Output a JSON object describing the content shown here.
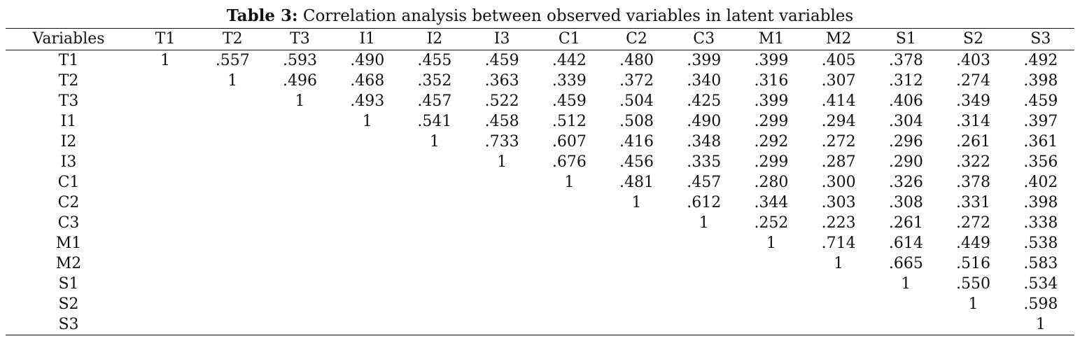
{
  "caption": {
    "label": "Table 3:",
    "text": "Correlation analysis between observed variables in latent variables"
  },
  "table": {
    "header": [
      "Variables",
      "T1",
      "T2",
      "T3",
      "I1",
      "I2",
      "I3",
      "C1",
      "C2",
      "C3",
      "M1",
      "M2",
      "S1",
      "S2",
      "S3"
    ],
    "rows": [
      [
        "T1",
        "1",
        ".557",
        ".593",
        ".490",
        ".455",
        ".459",
        ".442",
        ".480",
        ".399",
        ".399",
        ".405",
        ".378",
        ".403",
        ".492"
      ],
      [
        "T2",
        "",
        "1",
        ".496",
        ".468",
        ".352",
        ".363",
        ".339",
        ".372",
        ".340",
        ".316",
        ".307",
        ".312",
        ".274",
        ".398"
      ],
      [
        "T3",
        "",
        "",
        "1",
        ".493",
        ".457",
        ".522",
        ".459",
        ".504",
        ".425",
        ".399",
        ".414",
        ".406",
        ".349",
        ".459"
      ],
      [
        "I1",
        "",
        "",
        "",
        "1",
        ".541",
        ".458",
        ".512",
        ".508",
        ".490",
        ".299",
        ".294",
        ".304",
        ".314",
        ".397"
      ],
      [
        "I2",
        "",
        "",
        "",
        "",
        "1",
        ".733",
        ".607",
        ".416",
        ".348",
        ".292",
        ".272",
        ".296",
        ".261",
        ".361"
      ],
      [
        "I3",
        "",
        "",
        "",
        "",
        "",
        "1",
        ".676",
        ".456",
        ".335",
        ".299",
        ".287",
        ".290",
        ".322",
        ".356"
      ],
      [
        "C1",
        "",
        "",
        "",
        "",
        "",
        "",
        "1",
        ".481",
        ".457",
        ".280",
        ".300",
        ".326",
        ".378",
        ".402"
      ],
      [
        "C2",
        "",
        "",
        "",
        "",
        "",
        "",
        "",
        "1",
        ".612",
        ".344",
        ".303",
        ".308",
        ".331",
        ".398"
      ],
      [
        "C3",
        "",
        "",
        "",
        "",
        "",
        "",
        "",
        "",
        "1",
        ".252",
        ".223",
        ".261",
        ".272",
        ".338"
      ],
      [
        "M1",
        "",
        "",
        "",
        "",
        "",
        "",
        "",
        "",
        "",
        "1",
        ".714",
        ".614",
        ".449",
        ".538"
      ],
      [
        "M2",
        "",
        "",
        "",
        "",
        "",
        "",
        "",
        "",
        "",
        "",
        "1",
        ".665",
        ".516",
        ".583"
      ],
      [
        "S1",
        "",
        "",
        "",
        "",
        "",
        "",
        "",
        "",
        "",
        "",
        "",
        "1",
        ".550",
        ".534"
      ],
      [
        "S2",
        "",
        "",
        "",
        "",
        "",
        "",
        "",
        "",
        "",
        "",
        "",
        "",
        "1",
        ".598"
      ],
      [
        "S3",
        "",
        "",
        "",
        "",
        "",
        "",
        "",
        "",
        "",
        "",
        "",
        "",
        "",
        "1"
      ]
    ]
  }
}
